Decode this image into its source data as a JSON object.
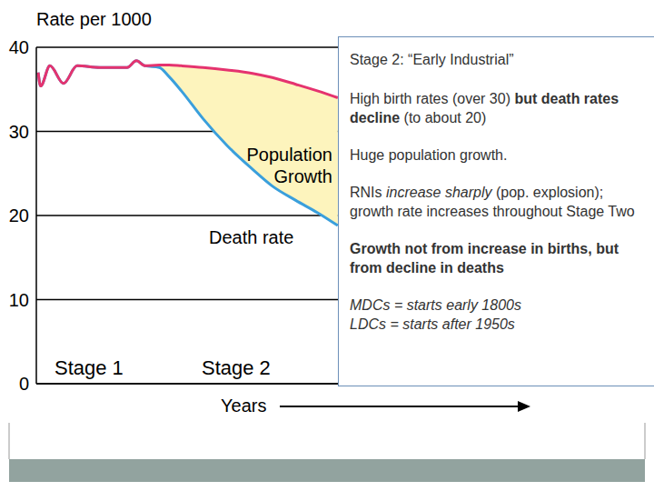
{
  "chart_data": {
    "type": "line",
    "title": "Rate per 1000",
    "x_label": "Years",
    "x": [
      0.3,
      0.7,
      2.2,
      4.4,
      6.6,
      10.3,
      14.7,
      16.2,
      17.6,
      19.9,
      21.5,
      23.5,
      27,
      30.9,
      35,
      38.2,
      42,
      45.6,
      48.8
    ],
    "xlim": [
      0,
      100
    ],
    "ylim": [
      0,
      40
    ],
    "yticks": [
      0,
      10,
      20,
      30,
      40
    ],
    "grid": true,
    "tick_labels": "y",
    "series": [
      {
        "color": "#e5336f",
        "values": [
          37,
          35.4,
          37.8,
          35.7,
          37.8,
          37.6,
          37.6,
          38.4,
          37.8,
          37.9,
          37.9,
          37.8,
          37.6,
          37.3,
          36.9,
          36.4,
          35.6,
          34.8,
          34
        ]
      },
      {
        "name": "Death rate",
        "color": "#3a9fdc",
        "values": [
          37,
          35.4,
          37.8,
          35.7,
          37.8,
          37.6,
          37.6,
          38.4,
          37.8,
          37.6,
          36.5,
          34.8,
          31.5,
          28.3,
          25.5,
          23.5,
          21.8,
          20.3,
          18.8
        ]
      }
    ],
    "area": {
      "label": "Population Growth",
      "color": "#fdf4bd"
    },
    "annotations": [
      "Stage 1",
      "Stage 2"
    ],
    "text_box": {
      "title": "Stage 2:  “Early Industrial”",
      "items": [
        [
          {
            "text": "High birth rates (over 30) "
          },
          {
            "text": "but death rates decline",
            "style": "bold"
          },
          {
            "text": " (to about 20)"
          }
        ],
        [
          {
            "text": "Huge population growth."
          }
        ],
        [
          {
            "text": "RNIs "
          },
          {
            "text": "increase sharply",
            "style": "italic"
          },
          {
            "text": " (pop. explosion); growth rate increases throughout Stage Two"
          }
        ],
        [
          {
            "text": "Growth not from increase in births, but from decline in deaths",
            "style": "bold"
          }
        ],
        [
          {
            "text": "MDCs = starts early 1800s",
            "style": "italic"
          },
          {
            "text": "LDCs = starts after 1950s",
            "style": "italic",
            "newline": true
          }
        ]
      ]
    }
  }
}
